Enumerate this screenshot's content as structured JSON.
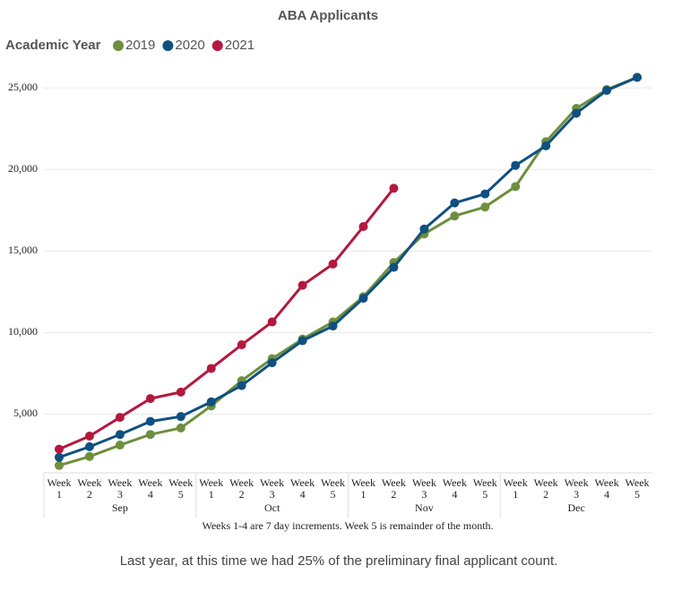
{
  "chart_data": {
    "type": "line",
    "title": "ABA Applicants",
    "legend_title": "Academic Year",
    "categories": [
      "Week 1",
      "Week 2",
      "Week 3",
      "Week 4",
      "Week 5",
      "Week 1",
      "Week 2",
      "Week 3",
      "Week 4",
      "Week 5",
      "Week 1",
      "Week 2",
      "Week 3",
      "Week 4",
      "Week 5",
      "Week 1",
      "Week 2",
      "Week 3",
      "Week 4",
      "Week 5"
    ],
    "category_groups": [
      "Sep",
      "Oct",
      "Nov",
      "Dec"
    ],
    "series": [
      {
        "name": "2019",
        "color": "#6e8f3e",
        "values": [
          1850,
          2400,
          3100,
          3750,
          4150,
          5500,
          7050,
          8400,
          9600,
          10650,
          12200,
          14300,
          16050,
          17150,
          17700,
          18950,
          21700,
          23750,
          24900,
          25650
        ]
      },
      {
        "name": "2020",
        "color": "#0f5080",
        "values": [
          2350,
          3000,
          3750,
          4550,
          4850,
          5750,
          6750,
          8150,
          9500,
          10400,
          12100,
          14000,
          16350,
          17950,
          18500,
          20250,
          21450,
          23450,
          24850,
          25650
        ]
      },
      {
        "name": "2021",
        "color": "#b5183f",
        "values": [
          2850,
          3650,
          4800,
          5950,
          6350,
          7800,
          9250,
          10650,
          12900,
          14200,
          16500,
          18850,
          null,
          null,
          null,
          null,
          null,
          null,
          null,
          null
        ]
      }
    ],
    "ylim": [
      1400,
      26000
    ],
    "yticks": [
      {
        "value": 5000,
        "label": "5,000"
      },
      {
        "value": 10000,
        "label": "10,000"
      },
      {
        "value": 15000,
        "label": "15,000"
      },
      {
        "value": 20000,
        "label": "20,000"
      },
      {
        "value": 25000,
        "label": "25,000"
      }
    ],
    "grid": true,
    "x_note": "Weeks 1-4 are 7 day increments. Week 5 is remainder of the month.",
    "footer": "Last year, at this time we had 25% of the preliminary final applicant count."
  }
}
